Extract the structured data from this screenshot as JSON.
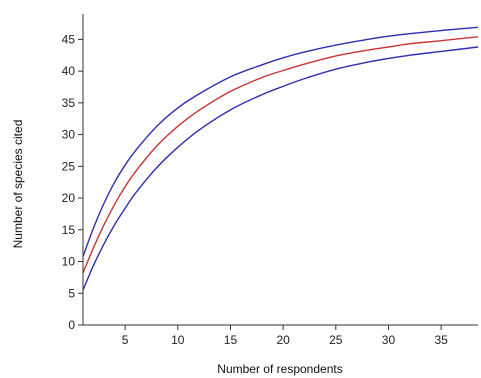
{
  "chart_data": {
    "type": "line",
    "title": "",
    "xlabel": "Number of respondents",
    "ylabel": "Number of species cited",
    "xlim": [
      1,
      38.5
    ],
    "ylim": [
      0,
      49
    ],
    "xticks": [
      5,
      10,
      15,
      20,
      25,
      30,
      35
    ],
    "yticks": [
      0,
      5,
      10,
      15,
      20,
      25,
      30,
      35,
      40,
      45
    ],
    "grid": false,
    "legend": "none",
    "series": [
      {
        "color": "#2f2fb4",
        "x": [
          1,
          2,
          3,
          4,
          5,
          6,
          8,
          10,
          12,
          15,
          18,
          20,
          22,
          25,
          28,
          30,
          32,
          35,
          38.5
        ],
        "y": [
          10.8,
          15.3,
          19.2,
          22.5,
          25.2,
          27.5,
          31.3,
          34.2,
          36.4,
          39.1,
          41.0,
          42.1,
          43.0,
          44.1,
          45.0,
          45.5,
          45.9,
          46.4,
          46.9
        ]
      },
      {
        "color": "#cc3333",
        "x": [
          1,
          2,
          3,
          4,
          5,
          6,
          8,
          10,
          12,
          15,
          18,
          20,
          22,
          25,
          28,
          30,
          32,
          35,
          38.5
        ],
        "y": [
          8.2,
          12.2,
          15.8,
          19.0,
          21.8,
          24.2,
          28.2,
          31.3,
          33.8,
          36.8,
          39.0,
          40.1,
          41.1,
          42.4,
          43.3,
          43.8,
          44.3,
          44.8,
          45.4
        ]
      },
      {
        "color": "#2f2fb4",
        "x": [
          1,
          2,
          3,
          4,
          5,
          6,
          8,
          10,
          12,
          15,
          18,
          20,
          22,
          25,
          28,
          30,
          32,
          35,
          38.5
        ],
        "y": [
          5.5,
          9.4,
          12.8,
          15.8,
          18.4,
          20.8,
          24.8,
          28.0,
          30.7,
          33.9,
          36.3,
          37.6,
          38.8,
          40.3,
          41.4,
          42.0,
          42.5,
          43.1,
          43.8
        ]
      }
    ]
  }
}
